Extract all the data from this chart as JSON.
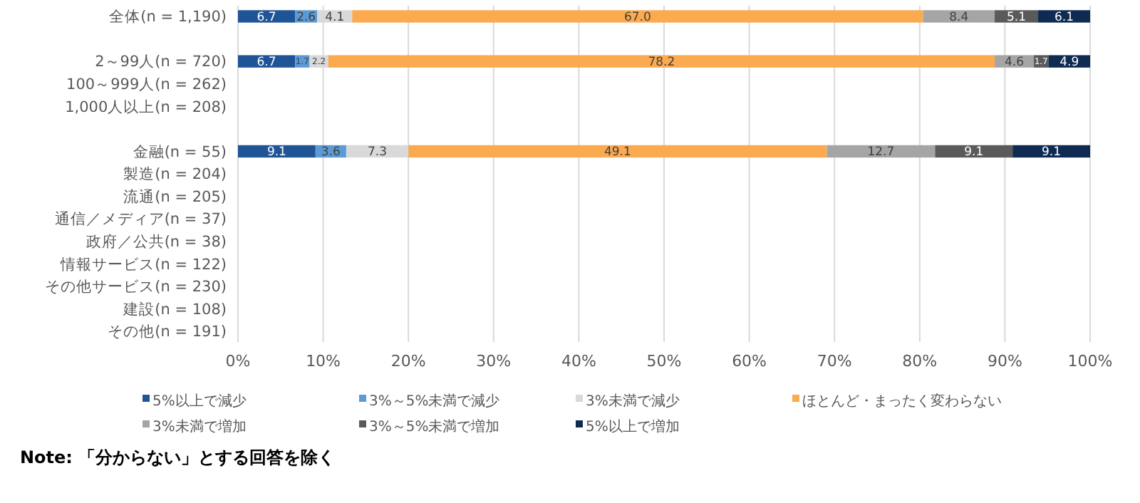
{
  "chart_data": {
    "type": "bar",
    "orientation": "horizontal",
    "stacked": true,
    "categories": [
      "全体(n = 1,190)",
      null,
      "2～99人(n = 720)",
      "100～999人(n = 262)",
      "1,000人以上(n = 208)",
      null,
      "金融(n = 55)",
      "製造(n = 204)",
      "流通(n = 205)",
      "通信／メディア(n = 37)",
      "政府／公共(n = 38)",
      "情報サービス(n = 122)",
      "その他サービス(n = 230)",
      "建設(n = 108)",
      "その他(n = 191)"
    ],
    "series": [
      {
        "name": "5%以上で減少",
        "color": "#1f5597",
        "values": [
          6.7,
          null,
          6.7,
          null,
          null,
          null,
          9.1,
          null,
          null,
          null,
          null,
          null,
          null,
          null,
          null
        ],
        "value_labels": [
          "6.7",
          null,
          "6.7",
          null,
          null,
          null,
          "9.1",
          null,
          null,
          null,
          null,
          null,
          null,
          null,
          null
        ]
      },
      {
        "name": "3%～5%未満で減少",
        "color": "#5b9bd5",
        "values": [
          2.6,
          null,
          1.7,
          null,
          null,
          null,
          3.6,
          null,
          null,
          null,
          null,
          null,
          null,
          null,
          null
        ],
        "value_labels": [
          "2.6",
          null,
          "1.7",
          null,
          null,
          null,
          "3.6",
          null,
          null,
          null,
          null,
          null,
          null,
          null,
          null
        ]
      },
      {
        "name": "3%未満で減少",
        "color": "#d9d9d9",
        "values": [
          4.1,
          null,
          2.2,
          null,
          null,
          null,
          7.3,
          null,
          null,
          null,
          null,
          null,
          null,
          null,
          null
        ],
        "value_labels": [
          "4.1",
          null,
          "2.2",
          null,
          null,
          null,
          "7.3",
          null,
          null,
          null,
          null,
          null,
          null,
          null,
          null
        ]
      },
      {
        "name": "ほとんど・まったく変わらない",
        "color": "#fbaa4f",
        "values": [
          67.0,
          null,
          78.2,
          null,
          null,
          null,
          49.1,
          null,
          null,
          null,
          null,
          null,
          null,
          null,
          null
        ],
        "value_labels": [
          "67.0",
          null,
          "78.2",
          null,
          null,
          null,
          "49.1",
          null,
          null,
          null,
          null,
          null,
          null,
          null,
          null
        ]
      },
      {
        "name": "3%未満で増加",
        "color": "#a5a5a5",
        "values": [
          8.4,
          null,
          4.6,
          null,
          null,
          null,
          12.7,
          null,
          null,
          null,
          null,
          null,
          null,
          null,
          null
        ],
        "value_labels": [
          "8.4",
          null,
          "4.6",
          null,
          null,
          null,
          "12.7",
          null,
          null,
          null,
          null,
          null,
          null,
          null,
          null
        ]
      },
      {
        "name": "3%～5%未満で増加",
        "color": "#5a5a5a",
        "values": [
          5.1,
          null,
          1.7,
          null,
          null,
          null,
          9.1,
          null,
          null,
          null,
          null,
          null,
          null,
          null,
          null
        ],
        "value_labels": [
          "5.1",
          null,
          "1.7",
          null,
          null,
          null,
          "9.1",
          null,
          null,
          null,
          null,
          null,
          null,
          null,
          null
        ]
      },
      {
        "name": "5%以上で増加",
        "color": "#0f2b52",
        "values": [
          6.1,
          null,
          4.9,
          null,
          null,
          null,
          9.1,
          null,
          null,
          null,
          null,
          null,
          null,
          null,
          null
        ],
        "value_labels": [
          "6.1",
          null,
          "4.9",
          null,
          null,
          null,
          "9.1",
          null,
          null,
          null,
          null,
          null,
          null,
          null,
          null
        ]
      }
    ],
    "xlim": [
      0,
      100
    ],
    "xticks": [
      {
        "value": 0,
        "label": "0%"
      },
      {
        "value": 10,
        "label": "10%"
      },
      {
        "value": 20,
        "label": "20%"
      },
      {
        "value": 30,
        "label": "30%"
      },
      {
        "value": 40,
        "label": "40%"
      },
      {
        "value": 50,
        "label": "50%"
      },
      {
        "value": 60,
        "label": "60%"
      },
      {
        "value": 70,
        "label": "70%"
      },
      {
        "value": 80,
        "label": "80%"
      },
      {
        "value": 90,
        "label": "90%"
      },
      {
        "value": 100,
        "label": "100%"
      }
    ],
    "grid": "x",
    "legend": "bottom",
    "annotations": [
      "Note: 「分からない」とする回答を除く"
    ]
  }
}
